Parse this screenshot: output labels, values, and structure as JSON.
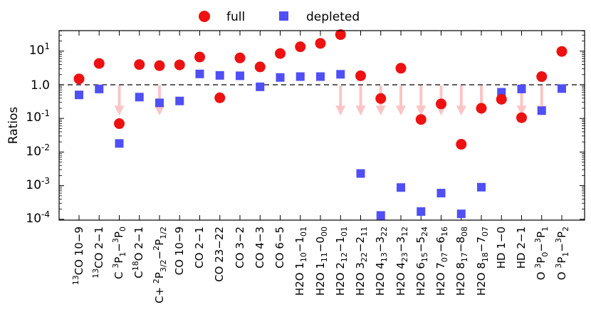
{
  "chart_data": {
    "type": "scatter",
    "ylabel": "Ratios",
    "yscale": "log",
    "ylim": [
      0.0001,
      50
    ],
    "reference_line": 1,
    "legend": {
      "position": "top-center",
      "full_label": "full",
      "depleted_label": "depleted"
    },
    "colors": {
      "full": "#ee1111",
      "depleted": "#4f4ff5",
      "arrow": "#fcc5c5"
    },
    "categories": [
      "13CO 10-9",
      "13CO 2-1",
      "C 3P1-3P0",
      "C18O 2-1",
      "C+ 2P3/2-2P1/2",
      "CO 10-9",
      "CO 2-1",
      "CO 23-22",
      "CO 3-2",
      "CO 4-3",
      "CO 6-5",
      "H2O 1_10-1_01",
      "H2O 1_11-0_00",
      "H2O 2_12-1_01",
      "H2O 3_22-2_11",
      "H2O 4_13-3_22",
      "H2O 4_23-3_12",
      "H2O 6_15-5_24",
      "H2O 7_07-6_16",
      "H2O 8_17-8_08",
      "H2O 8_18-7_07",
      "HD 1-0",
      "HD 2-1",
      "O 3P0-3P1",
      "O 3P1-3P2"
    ],
    "tick_labels": [
      "10^-4",
      "10^-3",
      "10^-2",
      "10^-1",
      "1.0",
      "10^1"
    ],
    "series": [
      {
        "name": "full",
        "values": [
          1.5,
          4.3,
          0.07,
          4.0,
          3.7,
          3.9,
          6.7,
          0.41,
          6.3,
          3.4,
          8.5,
          13.5,
          17.0,
          31.0,
          1.85,
          0.39,
          3.1,
          0.093,
          0.27,
          0.017,
          0.2,
          0.37,
          0.105,
          1.75,
          9.8
        ]
      },
      {
        "name": "depleted",
        "values": [
          0.5,
          0.75,
          0.018,
          0.43,
          0.29,
          0.33,
          2.1,
          1.9,
          1.85,
          0.87,
          1.65,
          1.75,
          1.75,
          2.05,
          0.0023,
          0.00013,
          0.00088,
          0.00017,
          0.0006,
          0.000145,
          0.0009,
          0.6,
          0.75,
          0.17,
          0.77
        ]
      }
    ],
    "arrows_down_from_unity": [
      "C 3P1-3P0",
      "C+ 2P3/2-2P1/2",
      "H2O 2_12-1_01",
      "H2O 3_22-2_11",
      "H2O 4_13-3_22",
      "H2O 4_23-3_12",
      "H2O 6_15-5_24",
      "H2O 7_07-6_16",
      "H2O 8_17-8_08",
      "H2O 8_18-7_07",
      "HD 2-1",
      "O 3P0-3P1"
    ]
  }
}
